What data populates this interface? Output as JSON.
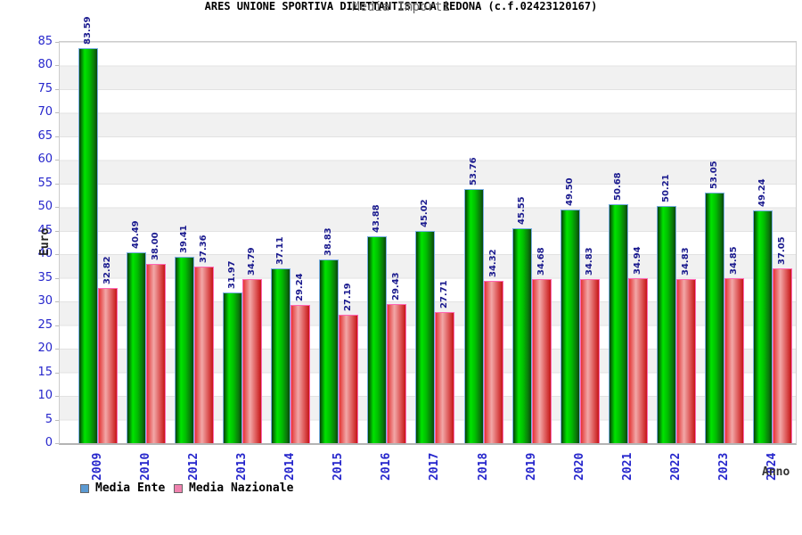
{
  "title": "ARES UNIONE SPORTIVA DILETTANTISTICA REDONA (c.f.02423120167)",
  "subtitle": "Media Importi",
  "axes": {
    "y_label": "Euro",
    "x_label": "Anno",
    "y_ticks": [
      0,
      5,
      10,
      15,
      20,
      25,
      30,
      35,
      40,
      45,
      50,
      55,
      60,
      65,
      70,
      75,
      80,
      85
    ]
  },
  "legend": {
    "position": "bottom-left",
    "entries": [
      {
        "label": "Media Ente",
        "swatch_color": "#5b9ad2"
      },
      {
        "label": "Media Nazionale",
        "swatch_color": "#ef82ae"
      }
    ]
  },
  "chart_data": {
    "type": "bar",
    "title": "ARES UNIONE SPORTIVA DILETTANTISTICA REDONA (c.f.02423120167)",
    "subtitle": "Media Importi",
    "xlabel": "Anno",
    "ylabel": "Euro",
    "ylim": [
      0,
      85
    ],
    "ytick_step": 5,
    "grid": "horizontal-bands",
    "legend_position": "bottom-left",
    "categories": [
      "2009",
      "2010",
      "2012",
      "2013",
      "2014",
      "2015",
      "2016",
      "2017",
      "2018",
      "2019",
      "2020",
      "2021",
      "2022",
      "2023",
      "2024"
    ],
    "series": [
      {
        "name": "Media Ente",
        "bar_color": "#00CC00",
        "bar_border_color": "#79AEE3",
        "values": [
          83.59,
          40.49,
          39.41,
          31.97,
          37.11,
          38.83,
          43.88,
          45.02,
          53.76,
          45.55,
          49.5,
          50.68,
          50.21,
          53.05,
          49.24
        ]
      },
      {
        "name": "Media Nazionale",
        "bar_color": "#E04040",
        "bar_border_color": "#FF66B3",
        "values": [
          32.82,
          38.0,
          37.36,
          34.79,
          29.24,
          27.19,
          29.43,
          27.71,
          34.32,
          34.68,
          34.83,
          34.94,
          34.83,
          34.85,
          37.05
        ]
      }
    ],
    "value_labels": "rotated-90-above-bars",
    "value_label_color": "#1A1A8E",
    "tick_label_color": "#2626CC"
  }
}
